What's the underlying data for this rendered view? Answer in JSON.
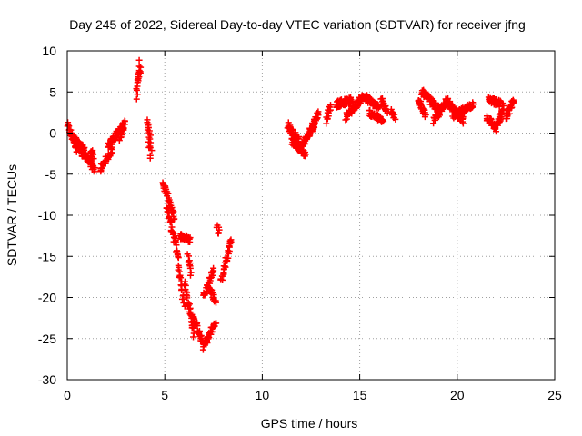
{
  "chart_data": {
    "type": "scatter",
    "title": "Day 245 of 2022, Sidereal Day-to-day VTEC variation (SDTVAR) for receiver jfng",
    "xlabel": "GPS time / hours",
    "ylabel": "SDTVAR / TECUs",
    "xlim": [
      0,
      25
    ],
    "ylim": [
      -30,
      10
    ],
    "xticks": [
      0,
      5,
      10,
      15,
      20,
      25
    ],
    "yticks": [
      -30,
      -25,
      -20,
      -15,
      -10,
      -5,
      0,
      5,
      10
    ],
    "grid": true,
    "marker": "+",
    "color": "#ff0000",
    "segments": [
      {
        "t0": 0.0,
        "t1": 0.5,
        "v0": 1.0,
        "v1": -2.0
      },
      {
        "t0": 0.3,
        "t1": 0.9,
        "v0": -0.5,
        "v1": -2.2
      },
      {
        "t0": 0.6,
        "t1": 1.2,
        "v0": -2.0,
        "v1": -3.5
      },
      {
        "t0": 1.0,
        "t1": 1.4,
        "v0": -3.0,
        "v1": -4.5
      },
      {
        "t0": 1.2,
        "t1": 1.35,
        "v0": -2.0,
        "v1": -2.8
      },
      {
        "t0": 1.7,
        "t1": 2.3,
        "v0": -4.5,
        "v1": -2.0
      },
      {
        "t0": 2.1,
        "t1": 2.9,
        "v0": -1.5,
        "v1": 1.0
      },
      {
        "t0": 2.7,
        "t1": 2.95,
        "v0": -0.5,
        "v1": 1.3
      },
      {
        "t0": 3.55,
        "t1": 3.7,
        "v0": 4.5,
        "v1": 9.0
      },
      {
        "t0": 3.6,
        "t1": 3.75,
        "v0": 5.5,
        "v1": 8.0
      },
      {
        "t0": 4.1,
        "t1": 4.25,
        "v0": 2.0,
        "v1": -3.0
      },
      {
        "t0": 4.15,
        "t1": 4.3,
        "v0": 1.0,
        "v1": -2.0
      },
      {
        "t0": 4.9,
        "t1": 5.5,
        "v0": -6.0,
        "v1": -10.5
      },
      {
        "t0": 5.1,
        "t1": 5.6,
        "v0": -9.0,
        "v1": -14.0
      },
      {
        "t0": 5.8,
        "t1": 6.3,
        "v0": -12.5,
        "v1": -13.0
      },
      {
        "t0": 5.6,
        "t1": 6.0,
        "v0": -14.0,
        "v1": -21.0
      },
      {
        "t0": 6.0,
        "t1": 6.5,
        "v0": -18.0,
        "v1": -24.5
      },
      {
        "t0": 6.4,
        "t1": 7.0,
        "v0": -22.0,
        "v1": -26.0
      },
      {
        "t0": 7.0,
        "t1": 7.6,
        "v0": -26.0,
        "v1": -23.0
      },
      {
        "t0": 6.2,
        "t1": 6.35,
        "v0": -15.0,
        "v1": -17.0
      },
      {
        "t0": 7.0,
        "t1": 7.5,
        "v0": -20.0,
        "v1": -16.5
      },
      {
        "t0": 7.3,
        "t1": 7.6,
        "v0": -19.0,
        "v1": -20.5
      },
      {
        "t0": 7.7,
        "t1": 7.8,
        "v0": -11.5,
        "v1": -12.0
      },
      {
        "t0": 7.9,
        "t1": 8.4,
        "v0": -18.0,
        "v1": -13.0
      },
      {
        "t0": 11.3,
        "t1": 11.9,
        "v0": 1.0,
        "v1": -1.0
      },
      {
        "t0": 11.5,
        "t1": 12.2,
        "v0": -1.0,
        "v1": -2.5
      },
      {
        "t0": 11.9,
        "t1": 12.7,
        "v0": -2.0,
        "v1": 1.0
      },
      {
        "t0": 12.4,
        "t1": 12.9,
        "v0": 0.0,
        "v1": 2.5
      },
      {
        "t0": 13.3,
        "t1": 13.5,
        "v0": 1.5,
        "v1": 3.5
      },
      {
        "t0": 13.8,
        "t1": 14.6,
        "v0": 3.5,
        "v1": 4.0
      },
      {
        "t0": 14.3,
        "t1": 15.2,
        "v0": 2.0,
        "v1": 4.5
      },
      {
        "t0": 15.2,
        "t1": 16.0,
        "v0": 4.5,
        "v1": 3.0
      },
      {
        "t0": 15.5,
        "t1": 16.2,
        "v0": 2.5,
        "v1": 1.5
      },
      {
        "t0": 16.1,
        "t1": 16.4,
        "v0": 4.0,
        "v1": 2.5
      },
      {
        "t0": 16.6,
        "t1": 16.8,
        "v0": 3.0,
        "v1": 2.0
      },
      {
        "t0": 18.0,
        "t1": 18.4,
        "v0": 4.0,
        "v1": 2.0
      },
      {
        "t0": 18.2,
        "t1": 19.0,
        "v0": 5.0,
        "v1": 3.0
      },
      {
        "t0": 18.8,
        "t1": 19.5,
        "v0": 1.5,
        "v1": 4.0
      },
      {
        "t0": 19.4,
        "t1": 20.3,
        "v0": 4.0,
        "v1": 1.5
      },
      {
        "t0": 19.8,
        "t1": 20.8,
        "v0": 2.0,
        "v1": 3.5
      },
      {
        "t0": 21.5,
        "t1": 22.0,
        "v0": 2.0,
        "v1": 0.5
      },
      {
        "t0": 21.6,
        "t1": 22.3,
        "v0": 4.0,
        "v1": 3.5
      },
      {
        "t0": 22.0,
        "t1": 22.4,
        "v0": 1.0,
        "v1": 3.0
      },
      {
        "t0": 22.5,
        "t1": 22.9,
        "v0": 2.0,
        "v1": 4.0
      }
    ]
  }
}
